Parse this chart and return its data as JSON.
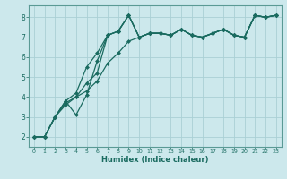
{
  "title": "",
  "xlabel": "Humidex (Indice chaleur)",
  "bg_color": "#cce8ec",
  "line_color": "#1a6b60",
  "grid_color": "#aad0d5",
  "spine_color": "#5a9a95",
  "xlim": [
    -0.5,
    23.5
  ],
  "ylim": [
    1.5,
    8.6
  ],
  "xticks": [
    0,
    1,
    2,
    3,
    4,
    5,
    6,
    7,
    8,
    9,
    10,
    11,
    12,
    13,
    14,
    15,
    16,
    17,
    18,
    19,
    20,
    21,
    22,
    23
  ],
  "yticks": [
    2,
    3,
    4,
    5,
    6,
    7,
    8
  ],
  "line1_x": [
    0,
    1,
    2,
    3,
    4,
    5,
    6,
    7,
    8,
    9,
    10,
    11,
    12,
    13,
    14,
    15,
    16,
    17,
    18,
    19,
    20,
    21,
    22,
    23
  ],
  "line1_y": [
    2.0,
    2.0,
    3.0,
    3.7,
    4.0,
    4.7,
    5.2,
    7.1,
    7.3,
    8.1,
    7.0,
    7.2,
    7.2,
    7.1,
    7.4,
    7.1,
    7.0,
    7.2,
    7.4,
    7.1,
    7.0,
    8.1,
    8.0,
    8.1
  ],
  "line2_x": [
    0,
    1,
    2,
    3,
    4,
    5,
    6,
    7,
    8,
    9,
    10,
    11,
    12,
    13,
    14,
    15,
    16,
    17,
    18,
    19,
    20,
    21,
    22,
    23
  ],
  "line2_y": [
    2.0,
    2.0,
    3.0,
    3.8,
    3.1,
    4.1,
    5.8,
    7.1,
    7.3,
    8.1,
    7.0,
    7.2,
    7.2,
    7.1,
    7.4,
    7.1,
    7.0,
    7.2,
    7.4,
    7.1,
    7.0,
    8.1,
    8.0,
    8.1
  ],
  "line3_x": [
    0,
    1,
    2,
    3,
    4,
    5,
    6,
    7,
    8,
    9,
    10,
    11,
    12,
    13,
    14,
    15,
    16,
    17,
    18,
    19,
    20,
    21,
    22,
    23
  ],
  "line3_y": [
    2.0,
    2.0,
    3.0,
    3.8,
    4.2,
    5.5,
    6.2,
    7.1,
    7.3,
    8.1,
    7.0,
    7.2,
    7.2,
    7.1,
    7.4,
    7.1,
    7.0,
    7.2,
    7.4,
    7.1,
    7.0,
    8.1,
    8.0,
    8.1
  ],
  "line4_x": [
    0,
    1,
    2,
    3,
    4,
    5,
    6,
    7,
    8,
    9,
    10,
    11,
    12,
    13,
    14,
    15,
    16,
    17,
    18,
    19,
    20,
    21,
    22,
    23
  ],
  "line4_y": [
    2.0,
    2.0,
    3.0,
    3.6,
    4.0,
    4.3,
    4.8,
    5.7,
    6.2,
    6.8,
    7.0,
    7.2,
    7.2,
    7.1,
    7.4,
    7.1,
    7.0,
    7.2,
    7.4,
    7.1,
    7.0,
    8.1,
    8.0,
    8.1
  ]
}
